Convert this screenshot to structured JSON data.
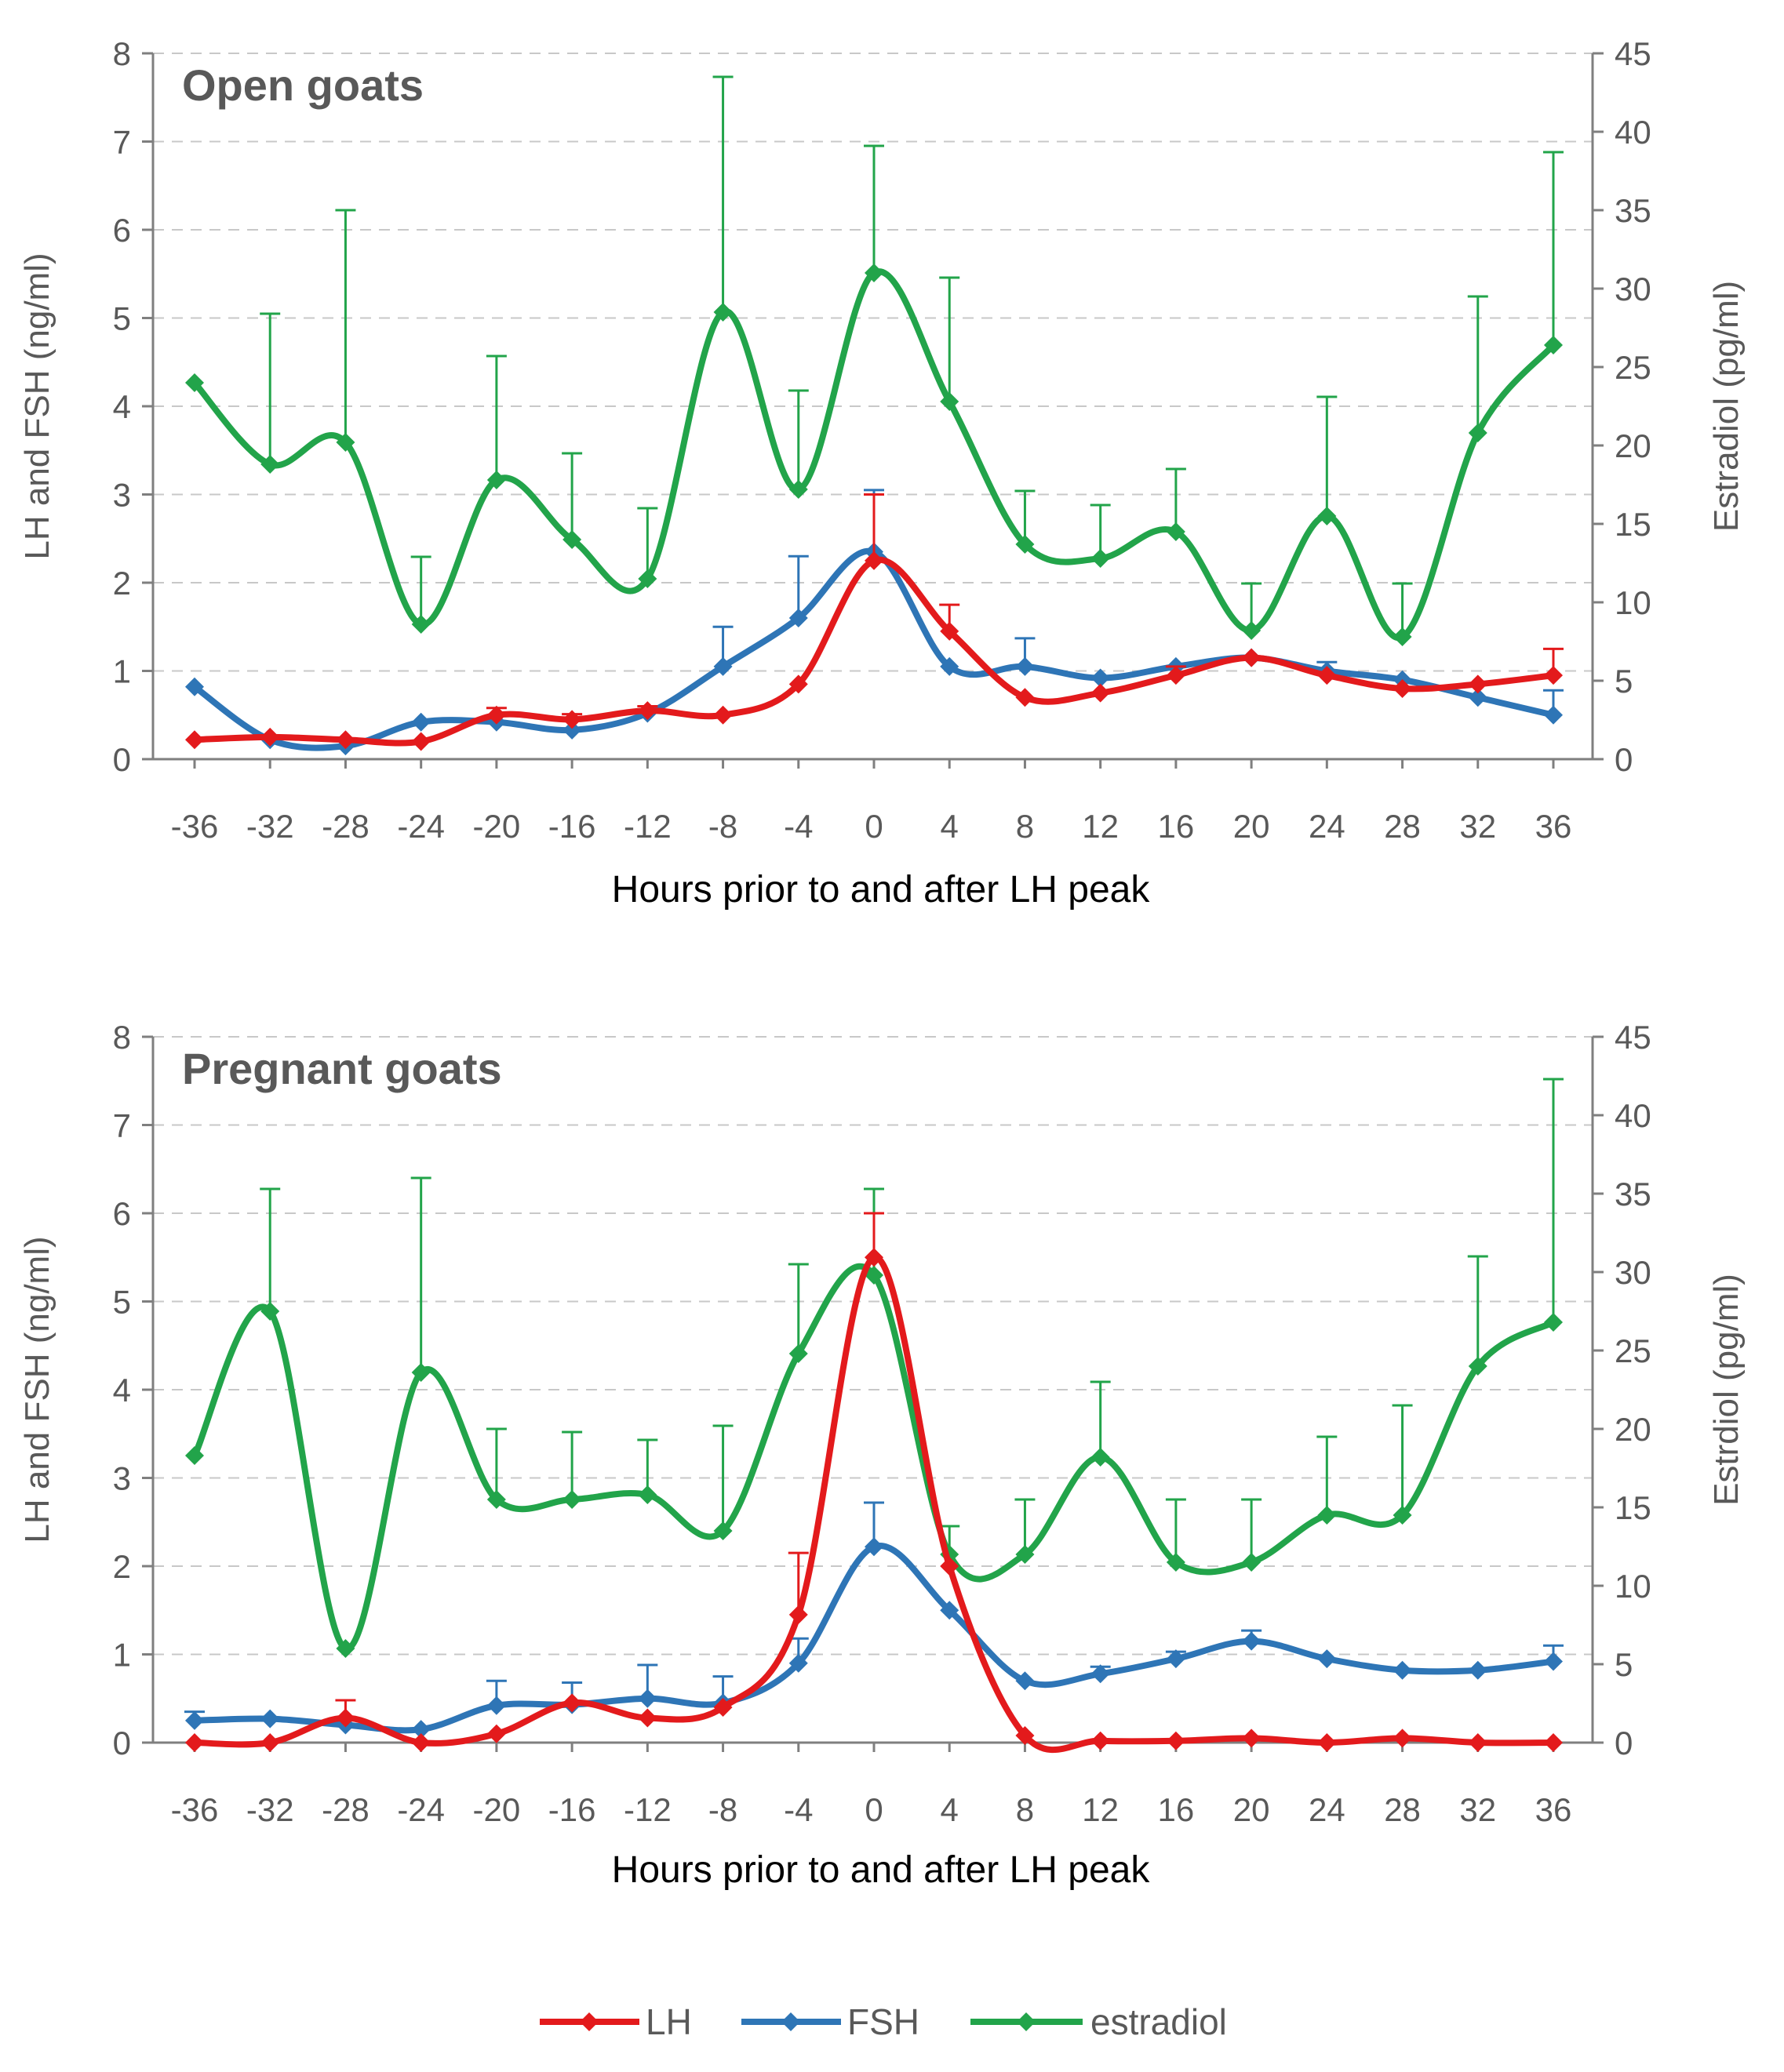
{
  "colors": {
    "LH": "#e31a1c",
    "FSH": "#2e75b6",
    "estradiol": "#22a44a",
    "axis": "#7f7f7f",
    "grid": "#c8c8c8",
    "text": "#595959"
  },
  "legend": [
    "LH",
    "FSH",
    "estradiol"
  ],
  "chart_data": [
    {
      "type": "line",
      "title": "Open goats",
      "xlabel": "Hours prior to and after LH peak",
      "ylabel": "LH and FSH (ng/ml)",
      "y2label": "Estradiol (pg/ml)",
      "x": [
        -36,
        -32,
        -28,
        -24,
        -20,
        -16,
        -12,
        -8,
        -4,
        0,
        4,
        8,
        12,
        16,
        20,
        24,
        28,
        32,
        36
      ],
      "xtick_labels": [
        "-36",
        "-32",
        "-28",
        "-24",
        "-20",
        "-16",
        "-12",
        "-8",
        "-4",
        "0",
        "4",
        "8",
        "12",
        "16",
        "20",
        "24",
        "28",
        "32",
        "36"
      ],
      "ylim": [
        0,
        8
      ],
      "yticks": [
        "0",
        "1",
        "2",
        "3",
        "4",
        "5",
        "6",
        "7",
        "8"
      ],
      "y2lim": [
        0,
        45
      ],
      "y2ticks": [
        "0",
        "5",
        "10",
        "15",
        "20",
        "25",
        "30",
        "35",
        "40",
        "45"
      ],
      "grid": true,
      "series": [
        {
          "name": "LH",
          "axis": "left",
          "values": [
            0.22,
            0.25,
            0.22,
            0.2,
            0.5,
            0.45,
            0.55,
            0.5,
            0.85,
            2.25,
            1.45,
            0.7,
            0.75,
            0.95,
            1.15,
            0.95,
            0.8,
            0.85,
            0.95
          ],
          "errors": [
            0.0,
            0.0,
            0.0,
            0.0,
            0.08,
            0.06,
            0.05,
            0.0,
            0.0,
            0.75,
            0.3,
            0.0,
            0.0,
            0.1,
            0.0,
            0.0,
            0.0,
            0.0,
            0.3
          ]
        },
        {
          "name": "FSH",
          "axis": "left",
          "values": [
            0.82,
            0.22,
            0.15,
            0.42,
            0.42,
            0.33,
            0.52,
            1.05,
            1.6,
            2.35,
            1.05,
            1.05,
            0.92,
            1.05,
            1.15,
            1.0,
            0.9,
            0.7,
            0.5
          ],
          "errors": [
            0.0,
            0.0,
            0.0,
            0.0,
            0.0,
            0.0,
            0.0,
            0.45,
            0.7,
            0.7,
            0.0,
            0.32,
            0.0,
            0.0,
            0.0,
            0.1,
            0.0,
            0.0,
            0.28
          ]
        },
        {
          "name": "estradiol",
          "axis": "right",
          "values": [
            24.0,
            18.8,
            20.2,
            8.6,
            17.8,
            14.0,
            11.5,
            28.5,
            17.2,
            31.0,
            22.8,
            13.7,
            12.8,
            14.5,
            8.2,
            15.5,
            7.8,
            20.8,
            26.4
          ],
          "errors": [
            0.0,
            9.6,
            14.8,
            4.3,
            7.9,
            5.5,
            4.5,
            15.0,
            6.3,
            8.1,
            7.9,
            3.4,
            3.4,
            4.0,
            3.0,
            7.6,
            3.4,
            8.7,
            12.3
          ]
        }
      ]
    },
    {
      "type": "line",
      "title": "Pregnant goats",
      "xlabel": "Hours prior to and after LH peak",
      "ylabel": "LH and FSH (ng/ml)",
      "y2label": "Estrdiol (pg/ml)",
      "x": [
        -36,
        -32,
        -28,
        -24,
        -20,
        -16,
        -12,
        -8,
        -4,
        0,
        4,
        8,
        12,
        16,
        20,
        24,
        28,
        32,
        36
      ],
      "xtick_labels": [
        "-36",
        "-32",
        "-28",
        "-24",
        "-20",
        "-16",
        "-12",
        "-8",
        "-4",
        "0",
        "4",
        "8",
        "12",
        "16",
        "20",
        "24",
        "28",
        "32",
        "36"
      ],
      "ylim": [
        0,
        8
      ],
      "yticks": [
        "0",
        "1",
        "2",
        "3",
        "4",
        "5",
        "6",
        "7",
        "8"
      ],
      "y2lim": [
        0,
        45
      ],
      "y2ticks": [
        "0",
        "5",
        "10",
        "15",
        "20",
        "25",
        "30",
        "35",
        "40",
        "45"
      ],
      "grid": true,
      "series": [
        {
          "name": "LH",
          "axis": "left",
          "values": [
            0.0,
            0.0,
            0.28,
            0.0,
            0.1,
            0.45,
            0.28,
            0.4,
            1.45,
            5.5,
            2.0,
            0.08,
            0.02,
            0.02,
            0.05,
            0.0,
            0.05,
            0.0,
            0.0
          ],
          "errors": [
            0.0,
            0.0,
            0.2,
            0.0,
            0.0,
            0.0,
            0.0,
            0.0,
            0.7,
            0.5,
            0.0,
            0.0,
            0.0,
            0.0,
            0.0,
            0.0,
            0.0,
            0.0,
            0.0
          ]
        },
        {
          "name": "FSH",
          "axis": "left",
          "values": [
            0.25,
            0.27,
            0.2,
            0.15,
            0.42,
            0.43,
            0.5,
            0.45,
            0.9,
            2.22,
            1.5,
            0.7,
            0.78,
            0.95,
            1.15,
            0.95,
            0.82,
            0.82,
            0.92
          ],
          "errors": [
            0.1,
            0.0,
            0.0,
            0.0,
            0.28,
            0.25,
            0.38,
            0.3,
            0.28,
            0.5,
            0.0,
            0.0,
            0.08,
            0.08,
            0.12,
            0.0,
            0.0,
            0.0,
            0.18
          ]
        },
        {
          "name": "estradiol",
          "axis": "right",
          "values": [
            18.3,
            27.5,
            6.0,
            23.6,
            15.5,
            15.5,
            15.8,
            13.5,
            24.8,
            29.8,
            12.0,
            12.0,
            18.2,
            11.5,
            11.5,
            14.5,
            14.5,
            24.0,
            26.8
          ],
          "errors": [
            0.0,
            7.8,
            0.0,
            12.4,
            4.5,
            4.3,
            3.5,
            6.7,
            5.7,
            5.5,
            1.8,
            3.5,
            4.8,
            4.0,
            4.0,
            5.0,
            7.0,
            7.0,
            15.5
          ]
        }
      ]
    }
  ]
}
